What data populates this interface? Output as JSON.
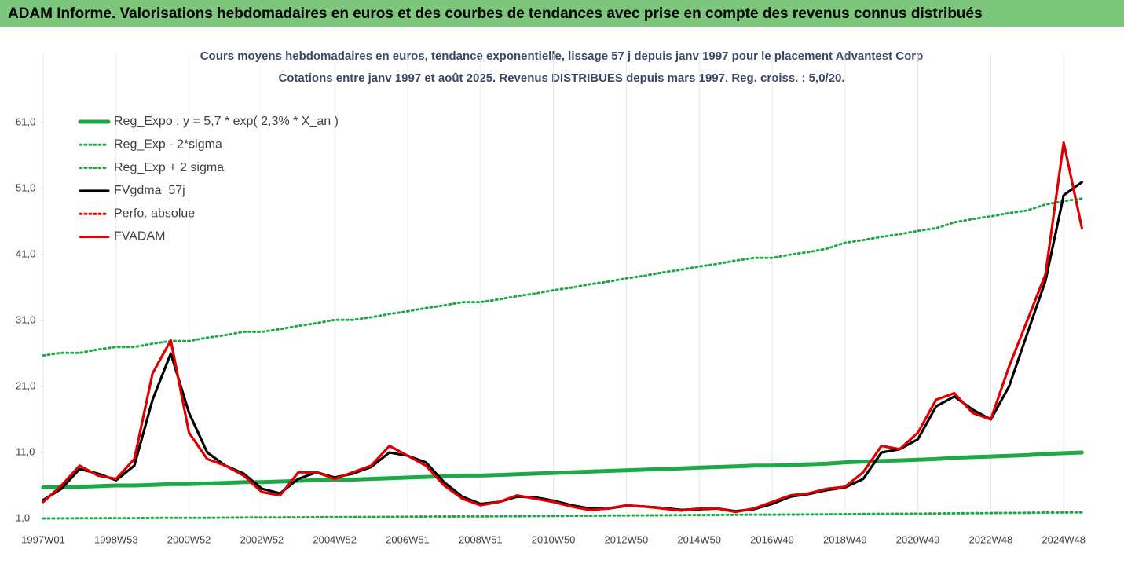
{
  "page_title": "ADAM Informe. Valorisations hebdomadaires en euros et des courbes de tendances avec prise en compte des revenus connus distribués",
  "chart_data": {
    "type": "line",
    "title": "Cours moyens hebdomadaires en euros, tendance exponentielle, lissage 57 j depuis janv 1997  pour le placement Advantest Corp",
    "subtitle": "Cotations entre janv 1997 et août 2025.  Revenus DISTRIBUES depuis mars 1997. Reg. croiss. : 5,0/20.",
    "categories": [
      "1997W01",
      null,
      null,
      null,
      "1998W53",
      null,
      null,
      null,
      "2000W52",
      null,
      null,
      null,
      "2002W52",
      null,
      null,
      null,
      "2004W52",
      null,
      null,
      null,
      "2006W51",
      null,
      null,
      null,
      "2008W51",
      null,
      null,
      null,
      "2010W50",
      null,
      null,
      null,
      "2012W50",
      null,
      null,
      null,
      "2014W50",
      null,
      null,
      null,
      "2016W49",
      null,
      null,
      null,
      "2018W49",
      null,
      null,
      null,
      "2020W49",
      null,
      null,
      null,
      "2022W48",
      null,
      null,
      null,
      "2024W48",
      null
    ],
    "ylim": [
      1,
      69
    ],
    "yticks": [
      {
        "value": 1,
        "label": "1,0"
      },
      {
        "value": 11,
        "label": "11,0"
      },
      {
        "value": 21,
        "label": "21,0"
      },
      {
        "value": 31,
        "label": "31,0"
      },
      {
        "value": 41,
        "label": "41,0"
      },
      {
        "value": 51,
        "label": "51,0"
      },
      {
        "value": 61,
        "label": "61,0"
      }
    ],
    "legend": "upper left",
    "series": [
      {
        "name": "Reg_Expo : y = 5,7 * exp( 2,3% *  X_an )",
        "color": "#1fa84a",
        "style": "solid",
        "values": [
          5.7,
          5.8,
          5.8,
          5.9,
          6.0,
          6.0,
          6.1,
          6.2,
          6.2,
          6.3,
          6.4,
          6.5,
          6.5,
          6.6,
          6.7,
          6.8,
          6.9,
          6.9,
          7.0,
          7.1,
          7.2,
          7.3,
          7.4,
          7.5,
          7.5,
          7.6,
          7.7,
          7.8,
          7.9,
          8.0,
          8.1,
          8.2,
          8.3,
          8.4,
          8.5,
          8.6,
          8.7,
          8.8,
          8.9,
          9.0,
          9.0,
          9.1,
          9.2,
          9.3,
          9.5,
          9.6,
          9.7,
          9.8,
          9.9,
          10.0,
          10.2,
          10.3,
          10.4,
          10.5,
          10.6,
          10.8,
          10.9,
          11.0
        ]
      },
      {
        "name": "Reg_Exp - 2*sigma",
        "color": "#1fa84a",
        "style": "dotted",
        "values": [
          1.0,
          1.01,
          1.02,
          1.03,
          1.05,
          1.05,
          1.07,
          1.09,
          1.09,
          1.1,
          1.12,
          1.14,
          1.14,
          1.16,
          1.17,
          1.19,
          1.21,
          1.21,
          1.23,
          1.24,
          1.26,
          1.28,
          1.3,
          1.31,
          1.31,
          1.33,
          1.35,
          1.37,
          1.38,
          1.4,
          1.42,
          1.44,
          1.45,
          1.47,
          1.49,
          1.51,
          1.52,
          1.54,
          1.56,
          1.58,
          1.58,
          1.59,
          1.61,
          1.63,
          1.66,
          1.68,
          1.7,
          1.72,
          1.73,
          1.75,
          1.79,
          1.8,
          1.82,
          1.84,
          1.86,
          1.89,
          1.91,
          1.93
        ]
      },
      {
        "name": "Reg_Exp + 2 sigma",
        "color": "#1fa84a",
        "style": "dotted",
        "values": [
          25.7,
          26.1,
          26.1,
          26.6,
          27.0,
          27.0,
          27.5,
          27.9,
          27.9,
          28.4,
          28.8,
          29.3,
          29.3,
          29.7,
          30.2,
          30.6,
          31.1,
          31.1,
          31.5,
          32.0,
          32.4,
          32.9,
          33.3,
          33.8,
          33.8,
          34.2,
          34.7,
          35.1,
          35.6,
          36.0,
          36.5,
          36.9,
          37.4,
          37.8,
          38.3,
          38.7,
          39.2,
          39.6,
          40.1,
          40.5,
          40.5,
          41.0,
          41.4,
          41.9,
          42.8,
          43.2,
          43.7,
          44.1,
          44.6,
          45.0,
          45.9,
          46.4,
          46.8,
          47.3,
          47.7,
          48.6,
          49.1,
          49.5
        ]
      },
      {
        "name": "FVgdma_57j",
        "color": "#000000",
        "style": "solid",
        "values": [
          3.8,
          5.5,
          8.5,
          7.8,
          6.8,
          9,
          19,
          26,
          17,
          11,
          9,
          7.8,
          5.5,
          4.8,
          7,
          8,
          7.2,
          7.8,
          8.8,
          11,
          10.5,
          9.5,
          6.5,
          4.3,
          3.2,
          3.5,
          4.3,
          4.2,
          3.7,
          3,
          2.5,
          2.5,
          2.9,
          2.8,
          2.6,
          2.3,
          2.4,
          2.5,
          2.1,
          2.4,
          3.2,
          4.3,
          4.7,
          5.3,
          5.7,
          7,
          11,
          11.5,
          13,
          18,
          19.5,
          17.5,
          16,
          21,
          29,
          37,
          50,
          52
        ]
      },
      {
        "name": "Perfo. absolue",
        "color": "#e00000",
        "style": "dotted",
        "values": [
          3.5,
          6,
          9,
          7.5,
          7,
          10,
          23,
          28,
          14,
          10,
          9,
          7.5,
          5,
          4.5,
          8,
          8,
          7,
          8,
          9,
          12,
          10.5,
          9,
          6,
          4,
          3,
          3.5,
          4.5,
          4,
          3.5,
          2.8,
          2.3,
          2.5,
          3,
          2.8,
          2.5,
          2.2,
          2.5,
          2.5,
          2,
          2.5,
          3.5,
          4.5,
          4.8,
          5.5,
          5.8,
          8,
          12,
          11.5,
          14,
          19,
          20,
          17,
          16,
          24,
          31,
          38,
          58,
          45
        ]
      },
      {
        "name": "FVADAM",
        "color": "#e00000",
        "style": "solid",
        "values": [
          3.5,
          6,
          9,
          7.5,
          7,
          10,
          23,
          28,
          14,
          10,
          9,
          7.5,
          5,
          4.5,
          8,
          8,
          7,
          8,
          9,
          12,
          10.5,
          9,
          6,
          4,
          3,
          3.5,
          4.5,
          4,
          3.5,
          2.8,
          2.3,
          2.5,
          3,
          2.8,
          2.5,
          2.2,
          2.5,
          2.5,
          2,
          2.5,
          3.5,
          4.5,
          4.8,
          5.5,
          5.8,
          8,
          12,
          11.5,
          14,
          19,
          20,
          17,
          16,
          24,
          31,
          38,
          58,
          45
        ]
      }
    ]
  }
}
